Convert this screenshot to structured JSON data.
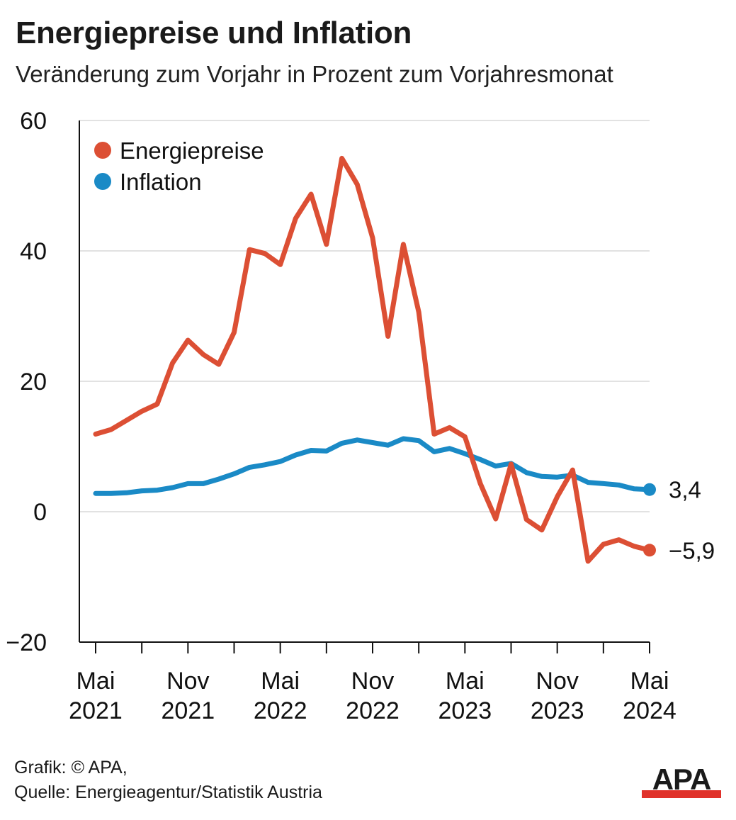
{
  "header": {
    "title": "Energiepreise und Inflation",
    "subtitle": "Veränderung zum Vorjahr in Prozent zum Vorjahresmonat"
  },
  "footer": {
    "credit": "Grafik: © APA,",
    "source": "Quelle: Energieagentur/Statistik Austria"
  },
  "logo": {
    "text": "APA",
    "color": "#e0312a"
  },
  "chart_data": {
    "type": "line",
    "title": "Energiepreise und Inflation",
    "subtitle": "Veränderung zum Vorjahr in Prozent zum Vorjahresmonat",
    "xlabel": "",
    "ylabel": "",
    "ylim": [
      -20,
      60
    ],
    "yticks": [
      60,
      40,
      20,
      0,
      -20
    ],
    "ytick_labels": [
      "60",
      "40",
      "20",
      "0",
      "−20"
    ],
    "grid": true,
    "legend_position": "top-left",
    "x_ticks": [
      {
        "index": 0,
        "month": "Mai",
        "year": "2021"
      },
      {
        "index": 6,
        "month": "Nov",
        "year": "2021"
      },
      {
        "index": 12,
        "month": "Mai",
        "year": "2022"
      },
      {
        "index": 18,
        "month": "Nov",
        "year": "2022"
      },
      {
        "index": 24,
        "month": "Mai",
        "year": "2023"
      },
      {
        "index": 30,
        "month": "Nov",
        "year": "2023"
      },
      {
        "index": 36,
        "month": "Mai",
        "year": "2024"
      }
    ],
    "x": [
      "2021-05",
      "2021-06",
      "2021-07",
      "2021-08",
      "2021-09",
      "2021-10",
      "2021-11",
      "2021-12",
      "2022-01",
      "2022-02",
      "2022-03",
      "2022-04",
      "2022-05",
      "2022-06",
      "2022-07",
      "2022-08",
      "2022-09",
      "2022-10",
      "2022-11",
      "2022-12",
      "2023-01",
      "2023-02",
      "2023-03",
      "2023-04",
      "2023-05",
      "2023-06",
      "2023-07",
      "2023-08",
      "2023-09",
      "2023-10",
      "2023-11",
      "2023-12",
      "2024-01",
      "2024-02",
      "2024-03",
      "2024-04",
      "2024-05"
    ],
    "series": [
      {
        "name": "Energiepreise",
        "color": "#dc4f34",
        "values": [
          11.9,
          12.6,
          14.0,
          15.4,
          16.5,
          22.8,
          26.3,
          24.1,
          22.6,
          27.5,
          40.2,
          39.6,
          37.9,
          45.0,
          48.7,
          41.0,
          54.2,
          50.2,
          42.0,
          26.9,
          41.0,
          30.6,
          11.9,
          12.9,
          11.5,
          4.3,
          -1.1,
          7.3,
          -1.2,
          -2.8,
          2.3,
          6.4,
          -7.6,
          -5.0,
          -4.3,
          -5.3,
          -5.9
        ],
        "end_label": "−5,9"
      },
      {
        "name": "Inflation",
        "color": "#1a8ac6",
        "values": [
          2.8,
          2.8,
          2.9,
          3.2,
          3.3,
          3.7,
          4.3,
          4.3,
          5.0,
          5.8,
          6.8,
          7.2,
          7.7,
          8.7,
          9.4,
          9.3,
          10.5,
          11.0,
          10.6,
          10.2,
          11.2,
          10.9,
          9.2,
          9.7,
          8.9,
          8.0,
          7.0,
          7.4,
          6.0,
          5.4,
          5.3,
          5.6,
          4.5,
          4.3,
          4.1,
          3.5,
          3.4
        ],
        "end_label": "3,4"
      }
    ]
  }
}
